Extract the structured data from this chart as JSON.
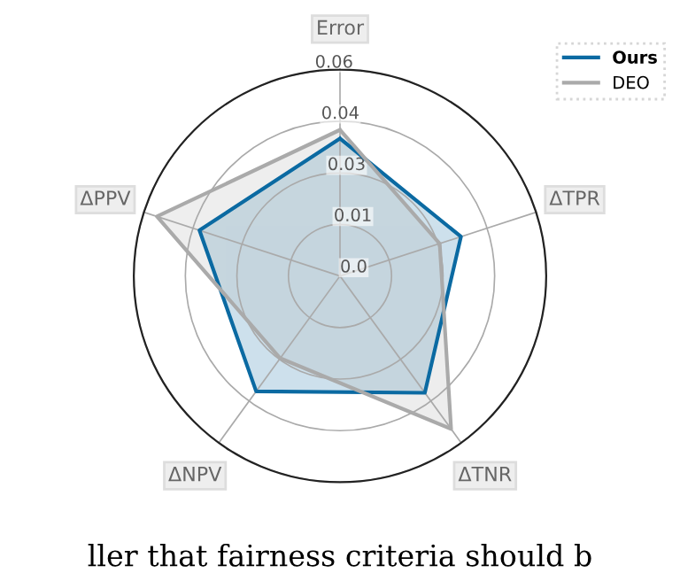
{
  "chart_data": {
    "type": "radar",
    "categories": [
      "Error",
      "ΔTPR",
      "ΔTNR",
      "ΔNPV",
      "ΔPPV"
    ],
    "series": [
      {
        "name": "Ours",
        "color": "#0b6aa2",
        "values": [
          0.04,
          0.037,
          0.042,
          0.0415,
          0.043
        ]
      },
      {
        "name": "DEO",
        "color": "#aaaaaa",
        "values": [
          0.0425,
          0.0305,
          0.055,
          0.0296,
          0.056
        ]
      }
    ],
    "ylim": [
      0,
      0.06
    ],
    "yticks": [
      {
        "value": 0,
        "label": "0.0"
      },
      {
        "value": 0.015,
        "label": "0.01"
      },
      {
        "value": 0.03,
        "label": "0.03"
      },
      {
        "value": 0.045,
        "label": "0.04"
      },
      {
        "value": 0.06,
        "label": "0.06"
      }
    ],
    "grid": true,
    "legend": "top right",
    "marker": "none",
    "line_style": "solid",
    "annotations": [
      "ller that fairness criteria should b"
    ]
  }
}
